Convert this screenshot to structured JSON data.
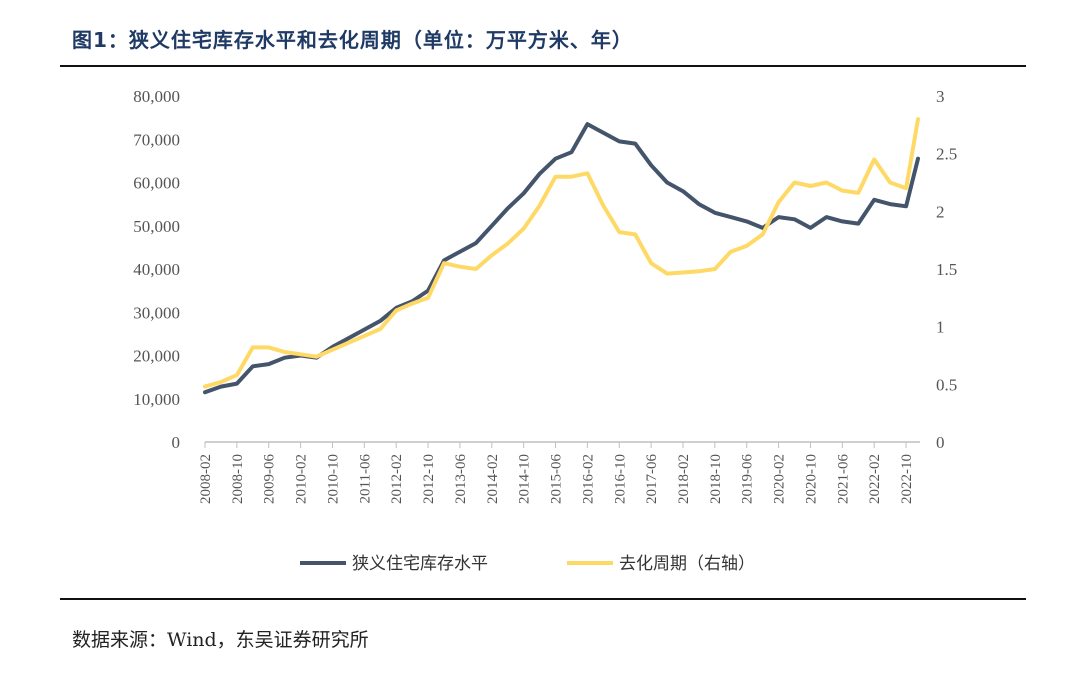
{
  "title": "图1：狭义住宅库存水平和去化周期（单位：万平方米、年）",
  "source": "数据来源：Wind，东吴证券研究所",
  "colors": {
    "series1": "#44546a",
    "series2": "#ffd966",
    "title": "#1f3a64"
  },
  "chart_data": {
    "type": "line",
    "x": [
      "2008-02",
      "2008-06",
      "2008-10",
      "2009-02",
      "2009-06",
      "2009-10",
      "2010-02",
      "2010-06",
      "2010-10",
      "2011-02",
      "2011-06",
      "2011-10",
      "2012-02",
      "2012-06",
      "2012-10",
      "2013-02",
      "2013-06",
      "2013-10",
      "2014-02",
      "2014-06",
      "2014-10",
      "2015-02",
      "2015-06",
      "2015-10",
      "2016-02",
      "2016-06",
      "2016-10",
      "2017-02",
      "2017-06",
      "2017-10",
      "2018-02",
      "2018-06",
      "2018-10",
      "2019-02",
      "2019-06",
      "2019-10",
      "2020-02",
      "2020-06",
      "2020-10",
      "2021-02",
      "2021-06",
      "2021-10",
      "2022-02",
      "2022-06",
      "2022-10",
      "2023-01"
    ],
    "x_tick_labels": [
      "2008-02",
      "2008-10",
      "2009-06",
      "2010-02",
      "2010-10",
      "2011-06",
      "2012-02",
      "2012-10",
      "2013-06",
      "2014-02",
      "2014-10",
      "2015-06",
      "2016-02",
      "2016-10",
      "2017-06",
      "2018-02",
      "2018-10",
      "2019-06",
      "2020-02",
      "2020-10",
      "2021-06",
      "2022-02",
      "2022-10"
    ],
    "series": [
      {
        "name": "狭义住宅库存水平",
        "axis": "left",
        "values": [
          11500,
          12800,
          13500,
          17500,
          18000,
          19500,
          20000,
          19500,
          22000,
          24000,
          26000,
          28000,
          31000,
          32500,
          35000,
          42000,
          44000,
          46000,
          50000,
          54000,
          57500,
          62000,
          65500,
          67000,
          73500,
          71500,
          69500,
          69000,
          64000,
          60000,
          58000,
          55000,
          53000,
          52000,
          51000,
          49500,
          52000,
          51500,
          49500,
          52000,
          51000,
          50500,
          56000,
          55000,
          54500,
          65500
        ]
      },
      {
        "name": "去化周期（右轴）",
        "axis": "right",
        "values": [
          0.48,
          0.52,
          0.58,
          0.82,
          0.82,
          0.78,
          0.76,
          0.74,
          0.8,
          0.86,
          0.92,
          0.98,
          1.14,
          1.2,
          1.25,
          1.55,
          1.52,
          1.5,
          1.62,
          1.72,
          1.85,
          2.05,
          2.3,
          2.3,
          2.33,
          2.05,
          1.82,
          1.8,
          1.55,
          1.46,
          1.47,
          1.48,
          1.5,
          1.65,
          1.7,
          1.8,
          2.08,
          2.25,
          2.22,
          2.25,
          2.18,
          2.16,
          2.45,
          2.25,
          2.2,
          2.8
        ]
      }
    ],
    "y_left": {
      "min": 0,
      "max": 80000,
      "ticks": [
        0,
        10000,
        20000,
        30000,
        40000,
        50000,
        60000,
        70000,
        80000
      ],
      "tick_labels": [
        "0",
        "10,000",
        "20,000",
        "30,000",
        "40,000",
        "50,000",
        "60,000",
        "70,000",
        "80,000"
      ]
    },
    "y_right": {
      "min": 0,
      "max": 3,
      "ticks": [
        0,
        0.5,
        1,
        1.5,
        2,
        2.5,
        3
      ],
      "tick_labels": [
        "0",
        "0.5",
        "1",
        "1.5",
        "2",
        "2.5",
        "3"
      ]
    },
    "legend_position": "bottom",
    "grid": false
  }
}
